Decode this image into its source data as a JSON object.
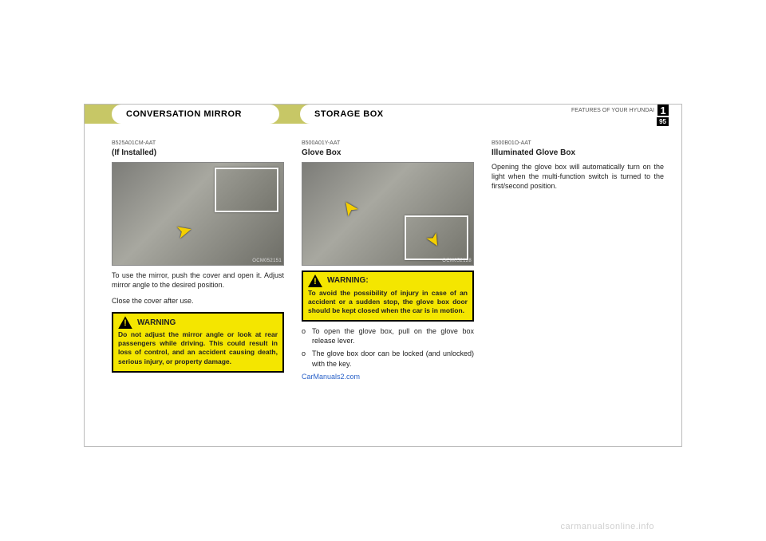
{
  "runningHead": "FEATURES OF YOUR HYUNDAI",
  "chapterNum": "1",
  "pageNum": "95",
  "tab1": "CONVERSATION  MIRROR",
  "tab2": "STORAGE  BOX",
  "col1": {
    "ref": "B525A01CM-AAT",
    "sub": "(If Installed)",
    "figcode": "OCM052151",
    "body1": "To use the mirror, push the cover and open it. Adjust mirror angle to the desired position.",
    "body2": "Close the cover after use.",
    "warnTitle": "WARNING",
    "warnBody": "Do not adjust the mirror angle or look at rear passengers while driving. This could result in loss of control, and an accident causing death, serious injury, or property damage."
  },
  "col2": {
    "ref": "B500A01Y-AAT",
    "sub": "Glove Box",
    "figcode": "OCM052128",
    "warnTitle": "WARNING:",
    "warnBody": "To avoid the possibility of injury in case of an accident or a sudden stop, the glove box door should be kept closed when the car is in motion.",
    "b1": "To open the glove box, pull on the glove box release lever.",
    "b2": "The glove box door can be locked (and unlocked) with the key.",
    "link": "CarManuals2.com"
  },
  "col3": {
    "ref": "B500B01O-AAT",
    "sub": "Illuminated Glove Box",
    "body": "Opening the glove box will automatically turn on the light when the multi-function switch is turned to the first/second position."
  },
  "watermark": "carmanualsonline.info"
}
